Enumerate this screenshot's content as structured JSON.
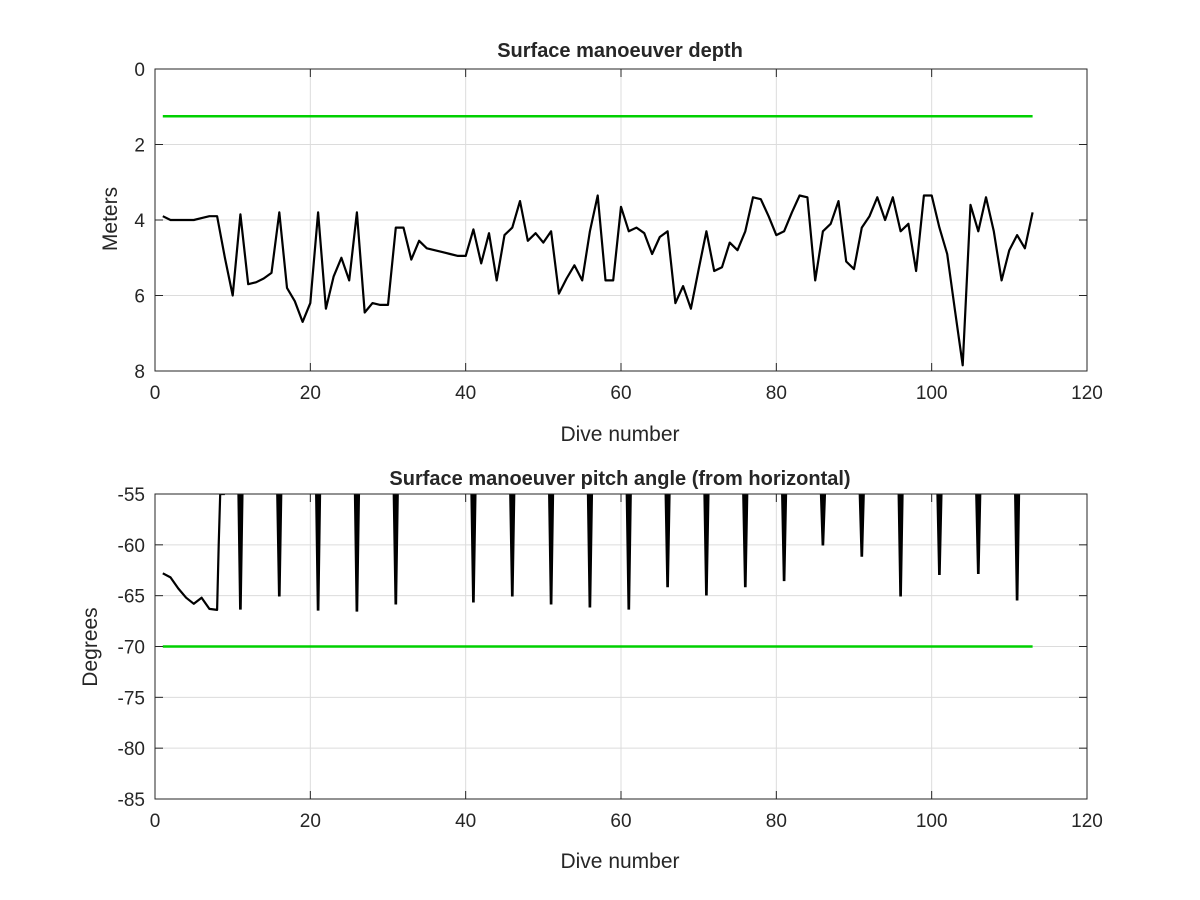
{
  "chart_data": [
    {
      "type": "line",
      "title": "Surface manoeuver depth",
      "xlabel": "Dive number",
      "ylabel": "Meters",
      "xlim": [
        0,
        120
      ],
      "ylim": [
        0,
        8
      ],
      "y_reversed": true,
      "grid": true,
      "xticks": [
        0,
        20,
        40,
        60,
        80,
        100,
        120
      ],
      "yticks": [
        0,
        2,
        4,
        6,
        8
      ],
      "x_tick_labels": [
        "0",
        "20",
        "40",
        "60",
        "80",
        "100",
        "120"
      ],
      "y_tick_labels": [
        "0",
        "2",
        "4",
        "6",
        "8"
      ],
      "series": [
        {
          "color": "#000000",
          "x": [
            1,
            2,
            3,
            4,
            5,
            6,
            7,
            8,
            9,
            10,
            11,
            12,
            13,
            14,
            15,
            16,
            17,
            18,
            19,
            20,
            21,
            22,
            23,
            24,
            25,
            26,
            27,
            28,
            29,
            30,
            31,
            32,
            33,
            34,
            35,
            36,
            37,
            38,
            39,
            40,
            41,
            42,
            43,
            44,
            45,
            46,
            47,
            48,
            49,
            50,
            51,
            52,
            53,
            54,
            55,
            56,
            57,
            58,
            59,
            60,
            61,
            62,
            63,
            64,
            65,
            66,
            67,
            68,
            69,
            70,
            71,
            72,
            73,
            74,
            75,
            76,
            77,
            78,
            79,
            80,
            81,
            82,
            83,
            84,
            85,
            86,
            87,
            88,
            89,
            90,
            91,
            92,
            93,
            94,
            95,
            96,
            97,
            98,
            99,
            100,
            101,
            102,
            103,
            104,
            105,
            106,
            107,
            108,
            109,
            110,
            111,
            112,
            113
          ],
          "y": [
            3.9,
            4.0,
            4.0,
            4.0,
            4.0,
            3.95,
            3.9,
            3.9,
            5.0,
            6.0,
            3.85,
            5.7,
            5.65,
            5.55,
            5.4,
            3.8,
            5.8,
            6.15,
            6.7,
            6.2,
            3.8,
            6.35,
            5.5,
            5.0,
            5.6,
            3.8,
            6.45,
            6.2,
            6.25,
            6.25,
            4.2,
            4.2,
            5.05,
            4.55,
            4.75,
            4.8,
            4.85,
            4.9,
            4.95,
            4.95,
            4.25,
            5.15,
            4.35,
            5.6,
            4.4,
            4.2,
            3.5,
            4.55,
            4.35,
            4.6,
            4.3,
            5.95,
            5.55,
            5.2,
            5.6,
            4.3,
            3.35,
            5.6,
            5.6,
            3.65,
            4.3,
            4.2,
            4.35,
            4.9,
            4.45,
            4.3,
            6.2,
            5.75,
            6.35,
            5.3,
            4.3,
            5.35,
            5.25,
            4.6,
            4.8,
            4.3,
            3.4,
            3.45,
            3.9,
            4.4,
            4.3,
            3.8,
            3.35,
            3.4,
            5.6,
            4.3,
            4.1,
            3.5,
            5.1,
            5.3,
            4.2,
            3.9,
            3.4,
            4.0,
            3.4,
            4.3,
            4.1,
            5.35,
            3.35,
            3.35,
            4.2,
            4.9,
            6.4,
            7.85,
            3.6,
            4.3,
            3.4,
            4.3,
            5.6,
            4.8,
            4.4,
            4.75,
            3.8
          ]
        },
        {
          "color": "#00d000",
          "x": [
            1,
            113
          ],
          "y": [
            1.25,
            1.25
          ]
        }
      ]
    },
    {
      "type": "line",
      "title": "Surface manoeuver pitch angle (from horizontal)",
      "xlabel": "Dive number",
      "ylabel": "Degrees",
      "xlim": [
        0,
        120
      ],
      "ylim": [
        -85,
        -55
      ],
      "y_reversed": false,
      "grid": true,
      "xticks": [
        0,
        20,
        40,
        60,
        80,
        100,
        120
      ],
      "yticks": [
        -85,
        -80,
        -75,
        -70,
        -65,
        -60,
        -55
      ],
      "x_tick_labels": [
        "0",
        "20",
        "40",
        "60",
        "80",
        "100",
        "120"
      ],
      "y_tick_labels": [
        "-85",
        "-80",
        "-75",
        "-70",
        "-65",
        "-60",
        "-55"
      ],
      "series": [
        {
          "color": "#000000",
          "x": [
            1,
            2,
            3,
            4,
            5,
            6,
            7,
            8,
            8.2,
            8.4,
            8.6,
            8.8,
            9
          ],
          "y": [
            -62.8,
            -63.2,
            -64.3,
            -65.2,
            -65.8,
            -65.2,
            -66.3,
            -66.4,
            -60,
            -55,
            -55,
            -55,
            -55
          ]
        },
        {
          "color": "#000000",
          "spikes": [
            {
              "x": 11,
              "y": -66.3
            },
            {
              "x": 16,
              "y": -65.0
            },
            {
              "x": 21,
              "y": -66.4
            },
            {
              "x": 26,
              "y": -66.5
            },
            {
              "x": 31,
              "y": -65.8
            },
            {
              "x": 41,
              "y": -65.6
            },
            {
              "x": 46,
              "y": -65.0
            },
            {
              "x": 51,
              "y": -65.8
            },
            {
              "x": 56,
              "y": -66.1
            },
            {
              "x": 61,
              "y": -66.3
            },
            {
              "x": 66,
              "y": -64.1
            },
            {
              "x": 71,
              "y": -64.9
            },
            {
              "x": 76,
              "y": -64.1
            },
            {
              "x": 81,
              "y": -63.5
            },
            {
              "x": 86,
              "y": -60.0
            },
            {
              "x": 91,
              "y": -61.1
            },
            {
              "x": 96,
              "y": -65.0
            },
            {
              "x": 101,
              "y": -62.9
            },
            {
              "x": 106,
              "y": -62.8
            },
            {
              "x": 111,
              "y": -65.4
            }
          ],
          "clipped_at": -55
        },
        {
          "color": "#00d000",
          "x": [
            1,
            113
          ],
          "y": [
            -70,
            -70
          ]
        }
      ]
    }
  ]
}
